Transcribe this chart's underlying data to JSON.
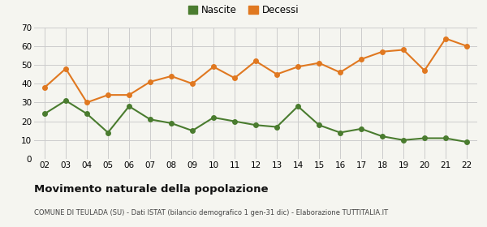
{
  "years": [
    "02",
    "03",
    "04",
    "05",
    "06",
    "07",
    "08",
    "09",
    "10",
    "11",
    "12",
    "13",
    "14",
    "15",
    "16",
    "17",
    "18",
    "19",
    "20",
    "21",
    "22"
  ],
  "nascite": [
    24,
    31,
    24,
    14,
    28,
    21,
    19,
    15,
    22,
    20,
    18,
    17,
    28,
    18,
    14,
    16,
    12,
    10,
    11,
    11,
    9
  ],
  "decessi": [
    38,
    48,
    30,
    34,
    34,
    41,
    44,
    40,
    49,
    43,
    52,
    45,
    49,
    51,
    46,
    53,
    57,
    58,
    47,
    64,
    60
  ],
  "nascite_color": "#4a7c2f",
  "decessi_color": "#e07820",
  "background_color": "#f5f5f0",
  "grid_color": "#cccccc",
  "title": "Movimento naturale della popolazione",
  "subtitle": "COMUNE DI TEULADA (SU) - Dati ISTAT (bilancio demografico 1 gen-31 dic) - Elaborazione TUTTITALIA.IT",
  "legend_nascite": "Nascite",
  "legend_decessi": "Decessi",
  "ylim": [
    0,
    70
  ],
  "yticks": [
    0,
    10,
    20,
    30,
    40,
    50,
    60,
    70
  ],
  "marker_size": 4,
  "line_width": 1.5
}
